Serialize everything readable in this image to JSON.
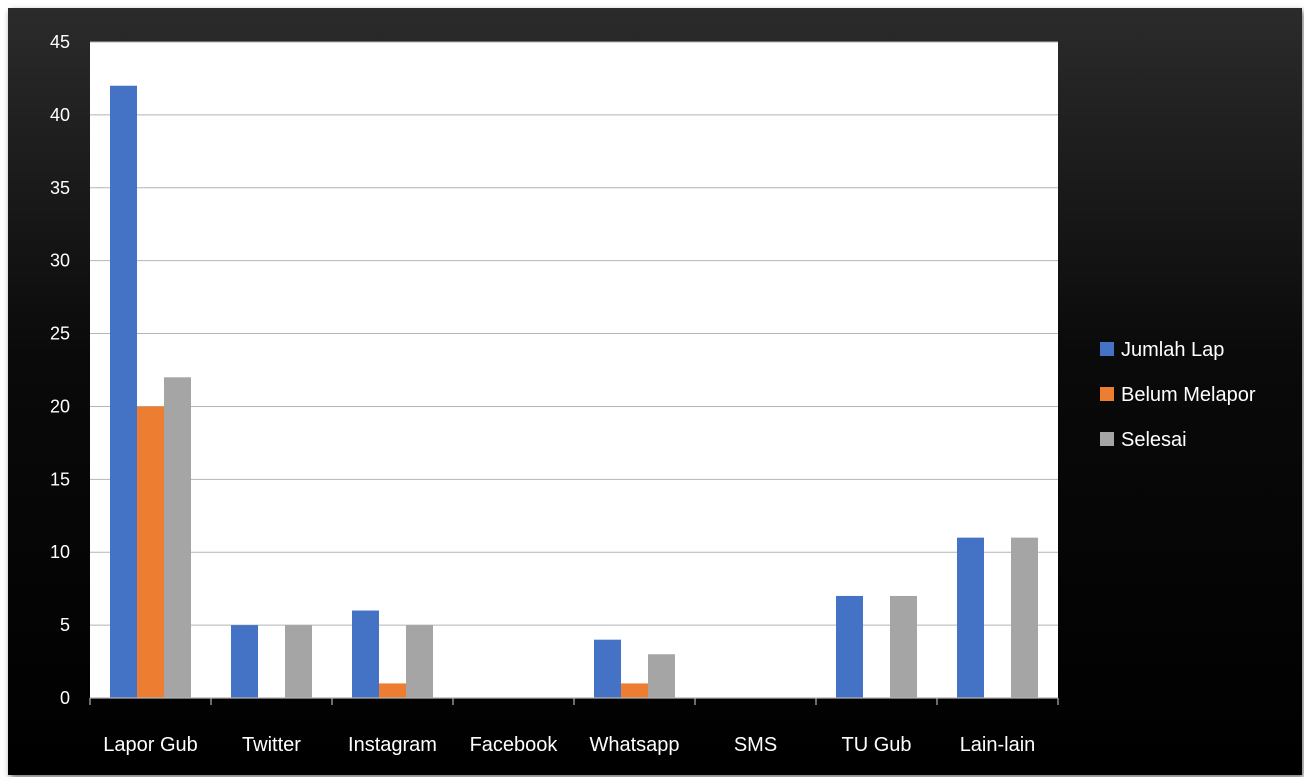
{
  "chart_data": {
    "type": "bar",
    "title": "",
    "xlabel": "",
    "ylabel": "",
    "categories": [
      "Lapor Gub",
      "Twitter",
      "Instagram",
      "Facebook",
      "Whatsapp",
      "SMS",
      "TU Gub",
      "Lain-lain"
    ],
    "series": [
      {
        "name": "Jumlah Lap",
        "color": "#4472C4",
        "values": [
          42,
          5,
          6,
          0,
          4,
          0,
          7,
          11
        ]
      },
      {
        "name": "Belum Melapor",
        "color": "#ED7D31",
        "values": [
          20,
          0,
          1,
          0,
          1,
          0,
          0,
          0
        ]
      },
      {
        "name": "Selesai",
        "color": "#A5A5A5",
        "values": [
          22,
          5,
          5,
          0,
          3,
          0,
          7,
          11
        ]
      }
    ],
    "ylim": [
      0,
      45
    ],
    "yticks": [
      0,
      5,
      10,
      15,
      20,
      25,
      30,
      35,
      40,
      45
    ],
    "grid": true,
    "legend_position": "right",
    "plot_background": "#ffffff",
    "chart_background": "#000000"
  }
}
